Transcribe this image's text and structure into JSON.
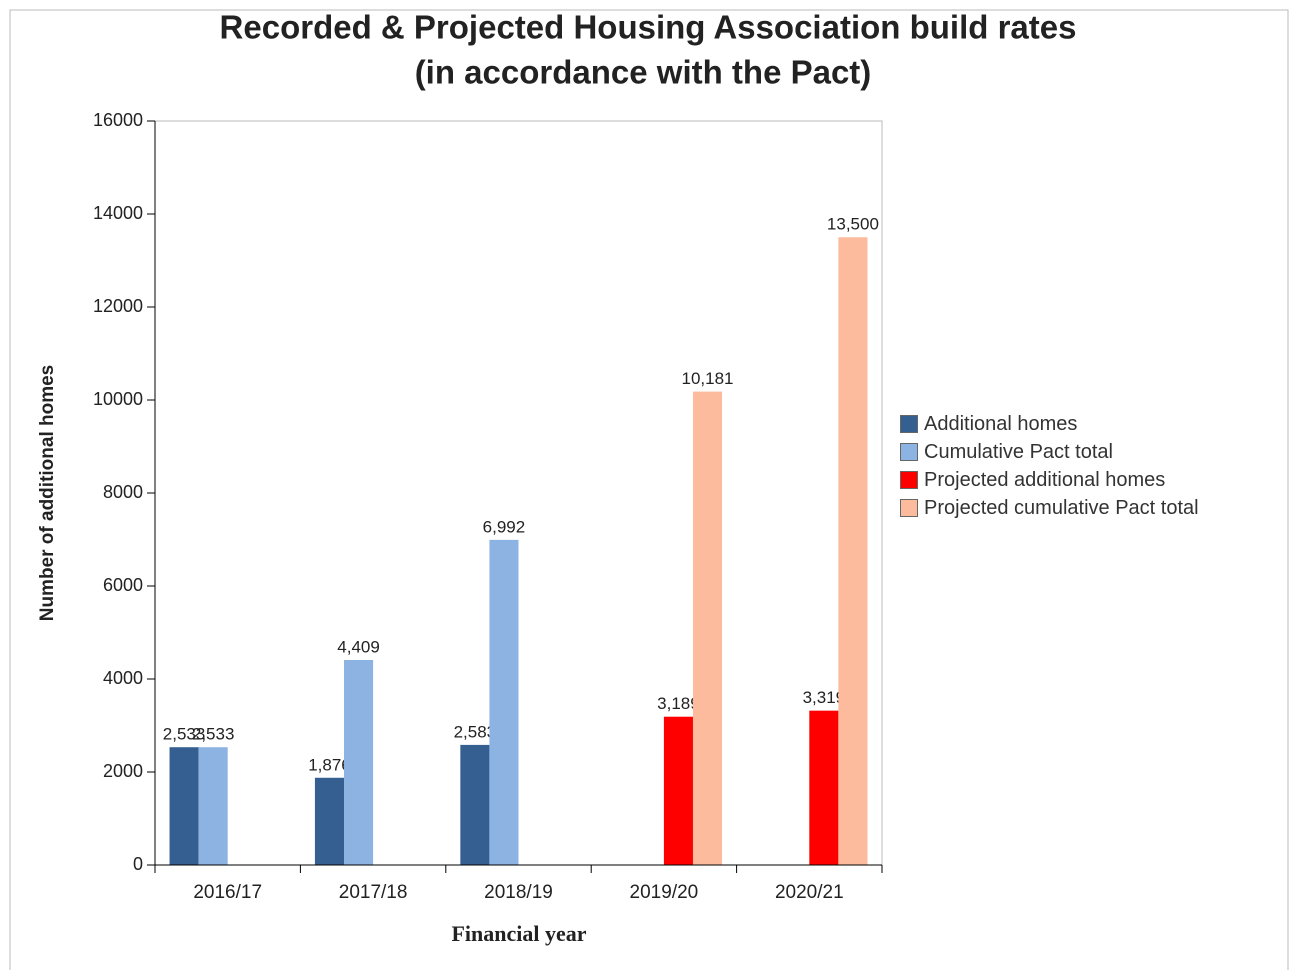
{
  "chart_data": {
    "type": "bar",
    "title": "Recorded & Projected Housing Association build rates",
    "subtitle": "(in accordance with the Pact)",
    "x_label": "Financial year",
    "y_label": "Number of additional homes",
    "categories": [
      "2016/17",
      "2017/18",
      "2018/19",
      "2019/20",
      "2020/21"
    ],
    "series": [
      {
        "name": "Additional homes",
        "color": "#365f91",
        "values": [
          2533,
          1876,
          2583,
          null,
          null
        ],
        "value_labels": [
          "2,533",
          "1,876",
          "2,583",
          null,
          null
        ]
      },
      {
        "name": "Cumulative Pact total",
        "color": "#8db3e2",
        "values": [
          2533,
          4409,
          6992,
          null,
          null
        ],
        "value_labels": [
          "2,533",
          "4,409",
          "6,992",
          null,
          null
        ]
      },
      {
        "name": "Projected additional homes",
        "color": "#ff0000",
        "values": [
          null,
          null,
          null,
          3189,
          3319
        ],
        "value_labels": [
          null,
          null,
          null,
          "3,189",
          "3,319"
        ]
      },
      {
        "name": "Projected cumulative Pact total",
        "color": "#fbbb9c",
        "values": [
          null,
          null,
          null,
          10181,
          13500
        ],
        "value_labels": [
          null,
          null,
          null,
          "10,181",
          "13,500"
        ]
      }
    ],
    "ylim": [
      0,
      16000
    ],
    "yticks": [
      0,
      2000,
      4000,
      6000,
      8000,
      10000,
      12000,
      14000,
      16000
    ],
    "legend": "right"
  }
}
